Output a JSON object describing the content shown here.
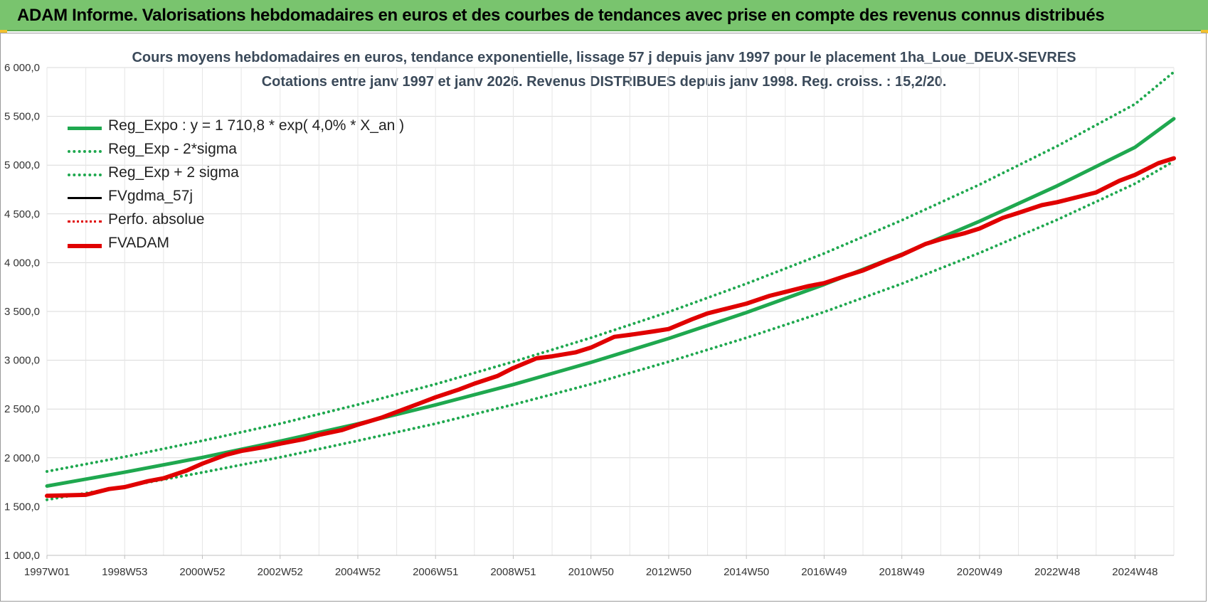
{
  "header": {
    "title": "ADAM Informe. Valorisations hebdomadaires en euros et des courbes de tendances avec prise en compte des revenus connus distribués"
  },
  "chart_data": {
    "type": "line",
    "title_line1": "Cours moyens hebdomadaires en euros, tendance exponentielle, lissage 57 j depuis janv 1997  pour le placement 1ha_Loue_DEUX-SEVRES",
    "title_line2": "Cotations entre janv 1997 et janv 2026. Revenus DISTRIBUES depuis janv 1998.  Reg. croiss. : 15,2/20.",
    "xlabel": "",
    "ylabel": "",
    "x_range": [
      1997.0,
      2026.0
    ],
    "ylim": [
      1000,
      6000
    ],
    "y_ticks": [
      1000,
      1500,
      2000,
      2500,
      3000,
      3500,
      4000,
      4500,
      5000,
      5500,
      6000
    ],
    "y_tick_labels": [
      "1 000,0",
      "1 500,0",
      "2 000,0",
      "2 500,0",
      "3 000,0",
      "3 500,0",
      "4 000,0",
      "4 500,0",
      "5 000,0",
      "5 500,0",
      "6 000,0"
    ],
    "x_ticks": [
      {
        "label": "1997W01",
        "x": 1997.0
      },
      {
        "label": "1998W53",
        "x": 1999.0
      },
      {
        "label": "2000W52",
        "x": 2001.0
      },
      {
        "label": "2002W52",
        "x": 2003.0
      },
      {
        "label": "2004W52",
        "x": 2005.0
      },
      {
        "label": "2006W51",
        "x": 2007.0
      },
      {
        "label": "2008W51",
        "x": 2009.0
      },
      {
        "label": "2010W50",
        "x": 2011.0
      },
      {
        "label": "2012W50",
        "x": 2013.0
      },
      {
        "label": "2014W50",
        "x": 2015.0
      },
      {
        "label": "2016W49",
        "x": 2017.0
      },
      {
        "label": "2018W49",
        "x": 2019.0
      },
      {
        "label": "2020W49",
        "x": 2021.0
      },
      {
        "label": "2022W48",
        "x": 2023.0
      },
      {
        "label": "2024W48",
        "x": 2025.0
      }
    ],
    "grid": true,
    "legend_position": "top-left",
    "series": [
      {
        "name": "Reg_Expo : y = 1 710,8 * exp( 4,0% *  X_an )",
        "style": "solid",
        "color": "#1fa84f",
        "x": [
          1997,
          1999,
          2001,
          2003,
          2005,
          2007,
          2009,
          2011,
          2013,
          2015,
          2017,
          2019,
          2021,
          2023,
          2025,
          2026
        ],
        "y": [
          1711,
          1852,
          2004,
          2170,
          2348,
          2542,
          2751,
          2978,
          3223,
          3489,
          3776,
          4087,
          4424,
          4788,
          5183,
          5475
        ]
      },
      {
        "name": "Reg_Exp - 2*sigma",
        "style": "dotted",
        "color": "#1fa84f",
        "x": [
          1997,
          1999,
          2001,
          2003,
          2005,
          2007,
          2009,
          2011,
          2013,
          2015,
          2017,
          2019,
          2021,
          2023,
          2025,
          2026
        ],
        "y": [
          1570,
          1705,
          1850,
          2005,
          2175,
          2350,
          2545,
          2755,
          2985,
          3230,
          3495,
          3785,
          4100,
          4440,
          4810,
          5040
        ]
      },
      {
        "name": "Reg_Exp + 2 sigma",
        "style": "dotted",
        "color": "#1fa84f",
        "x": [
          1997,
          1999,
          2001,
          2003,
          2005,
          2007,
          2009,
          2011,
          2013,
          2015,
          2017,
          2019,
          2021,
          2023,
          2025,
          2026
        ],
        "y": [
          1860,
          2010,
          2175,
          2350,
          2545,
          2755,
          2985,
          3230,
          3495,
          3785,
          4095,
          4435,
          4800,
          5195,
          5625,
          5955
        ]
      },
      {
        "name": "FVgdma_57j",
        "style": "solid",
        "color": "#000000",
        "x": [
          1997.0,
          1998.0,
          1998.6,
          1999.0,
          1999.6,
          2000.0,
          2000.6,
          2001.0,
          2001.6,
          2002.0,
          2002.6,
          2003.0,
          2003.6,
          2004.0,
          2004.6,
          2005.0,
          2005.6,
          2006.0,
          2006.6,
          2007.0,
          2007.6,
          2008.0,
          2008.6,
          2009.0,
          2009.6,
          2010.0,
          2010.6,
          2011.0,
          2011.6,
          2012.0,
          2012.6,
          2013.0,
          2013.6,
          2014.0,
          2014.6,
          2015.0,
          2015.6,
          2016.0,
          2016.6,
          2017.0,
          2017.6,
          2018.0,
          2018.6,
          2019.0,
          2019.6,
          2020.0,
          2020.6,
          2021.0,
          2021.6,
          2022.0,
          2022.6,
          2023.0,
          2023.6,
          2024.0,
          2024.6,
          2025.0,
          2025.6,
          2026.0
        ],
        "y": [
          1610,
          1620,
          1680,
          1700,
          1760,
          1790,
          1870,
          1940,
          2030,
          2070,
          2110,
          2145,
          2190,
          2235,
          2285,
          2340,
          2410,
          2470,
          2560,
          2620,
          2700,
          2760,
          2840,
          2920,
          3020,
          3040,
          3080,
          3130,
          3240,
          3260,
          3295,
          3320,
          3420,
          3480,
          3540,
          3580,
          3660,
          3700,
          3760,
          3790,
          3870,
          3920,
          4020,
          4080,
          4190,
          4240,
          4300,
          4350,
          4460,
          4510,
          4590,
          4620,
          4680,
          4720,
          4840,
          4900,
          5020,
          5070
        ]
      },
      {
        "name": "Perfo. absolue",
        "style": "dotted",
        "color": "#e00000",
        "x": [
          1997.0,
          1998.0,
          1998.6,
          1999.0,
          1999.6,
          2000.0,
          2000.6,
          2001.0,
          2001.6,
          2002.0,
          2002.6,
          2003.0,
          2003.6,
          2004.0,
          2004.6,
          2005.0,
          2005.6,
          2006.0,
          2006.6,
          2007.0,
          2007.6,
          2008.0,
          2008.6,
          2009.0,
          2009.6,
          2010.0,
          2010.6,
          2011.0,
          2011.6,
          2012.0,
          2012.6,
          2013.0,
          2013.6,
          2014.0,
          2014.6,
          2015.0,
          2015.6,
          2016.0,
          2016.6,
          2017.0,
          2017.6,
          2018.0,
          2018.6,
          2019.0,
          2019.6,
          2020.0,
          2020.6,
          2021.0,
          2021.6,
          2022.0,
          2022.6,
          2023.0,
          2023.6,
          2024.0,
          2024.6,
          2025.0,
          2025.6,
          2026.0
        ],
        "y": [
          1610,
          1620,
          1680,
          1700,
          1760,
          1790,
          1870,
          1940,
          2030,
          2070,
          2110,
          2145,
          2190,
          2235,
          2285,
          2340,
          2410,
          2470,
          2560,
          2620,
          2700,
          2760,
          2840,
          2920,
          3020,
          3040,
          3080,
          3130,
          3240,
          3260,
          3295,
          3320,
          3420,
          3480,
          3540,
          3580,
          3660,
          3700,
          3760,
          3790,
          3870,
          3920,
          4020,
          4080,
          4190,
          4240,
          4300,
          4350,
          4460,
          4510,
          4590,
          4620,
          4680,
          4720,
          4840,
          4900,
          5020,
          5070
        ]
      },
      {
        "name": "FVADAM",
        "style": "solid",
        "color": "#e00000",
        "x": [
          1997.0,
          1998.0,
          1998.6,
          1999.0,
          1999.6,
          2000.0,
          2000.6,
          2001.0,
          2001.6,
          2002.0,
          2002.6,
          2003.0,
          2003.6,
          2004.0,
          2004.6,
          2005.0,
          2005.6,
          2006.0,
          2006.6,
          2007.0,
          2007.6,
          2008.0,
          2008.6,
          2009.0,
          2009.6,
          2010.0,
          2010.6,
          2011.0,
          2011.6,
          2012.0,
          2012.6,
          2013.0,
          2013.6,
          2014.0,
          2014.6,
          2015.0,
          2015.6,
          2016.0,
          2016.6,
          2017.0,
          2017.6,
          2018.0,
          2018.6,
          2019.0,
          2019.6,
          2020.0,
          2020.6,
          2021.0,
          2021.6,
          2022.0,
          2022.6,
          2023.0,
          2023.6,
          2024.0,
          2024.6,
          2025.0,
          2025.6,
          2026.0
        ],
        "y": [
          1610,
          1620,
          1680,
          1700,
          1760,
          1790,
          1870,
          1940,
          2030,
          2070,
          2110,
          2145,
          2190,
          2235,
          2285,
          2340,
          2410,
          2470,
          2560,
          2620,
          2700,
          2760,
          2840,
          2920,
          3020,
          3040,
          3080,
          3130,
          3240,
          3260,
          3295,
          3320,
          3420,
          3480,
          3540,
          3580,
          3660,
          3700,
          3760,
          3790,
          3870,
          3920,
          4020,
          4080,
          4190,
          4240,
          4300,
          4350,
          4460,
          4510,
          4590,
          4620,
          4680,
          4720,
          4840,
          4900,
          5020,
          5070
        ]
      }
    ]
  }
}
